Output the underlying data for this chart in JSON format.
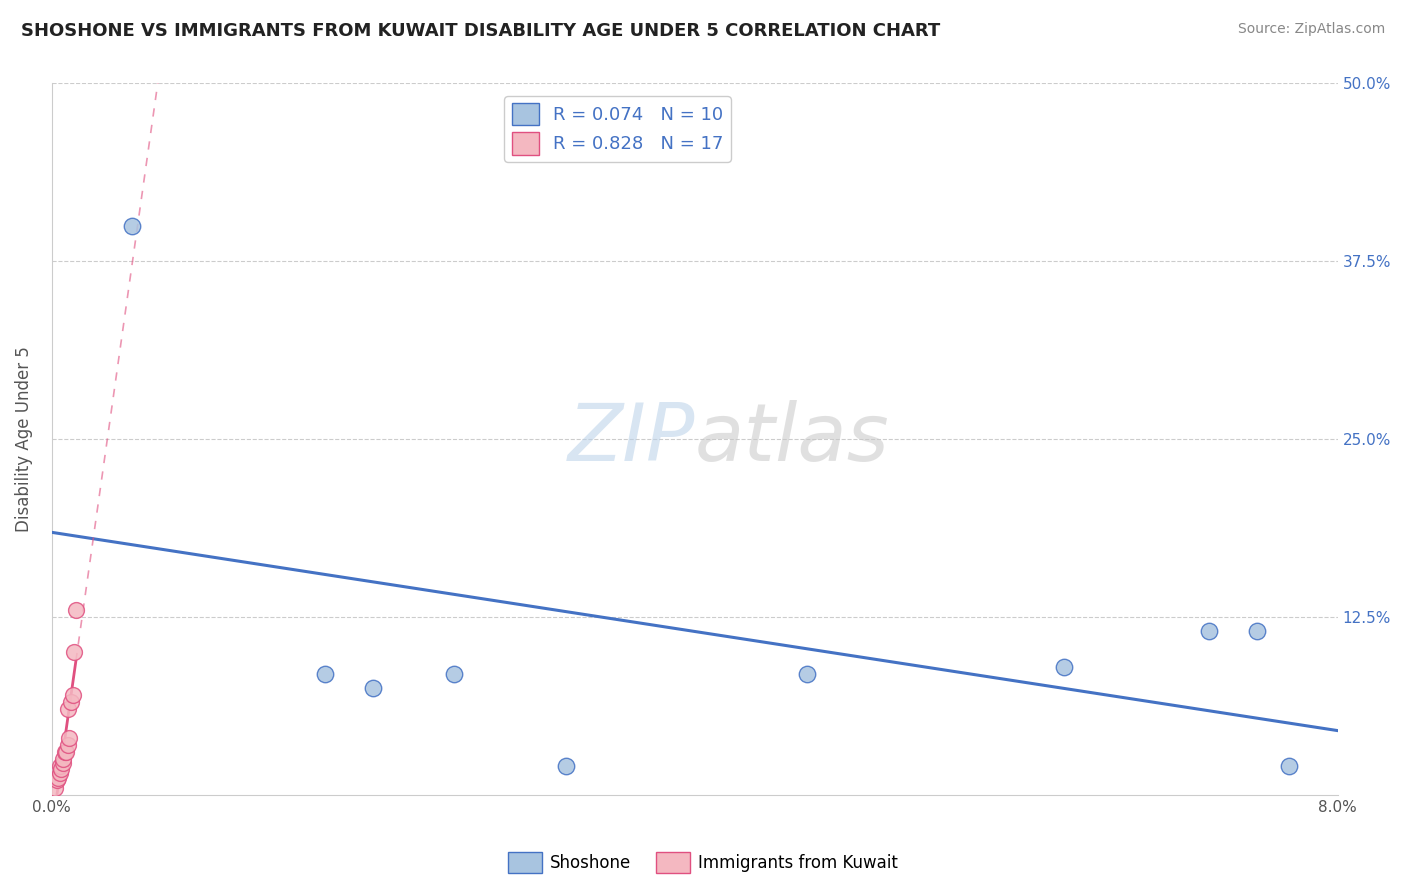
{
  "title": "SHOSHONE VS IMMIGRANTS FROM KUWAIT DISABILITY AGE UNDER 5 CORRELATION CHART",
  "source": "Source: ZipAtlas.com",
  "ylabel": "Disability Age Under 5",
  "xlim": [
    0.0,
    0.08
  ],
  "ylim": [
    0.0,
    0.5
  ],
  "xtick_positions": [
    0.0,
    0.01,
    0.02,
    0.03,
    0.04,
    0.05,
    0.06,
    0.07,
    0.08
  ],
  "xtick_labels": [
    "0.0%",
    "",
    "",
    "",
    "",
    "",
    "",
    "",
    "8.0%"
  ],
  "ytick_positions": [
    0.125,
    0.25,
    0.375,
    0.5
  ],
  "ytick_labels": [
    "12.5%",
    "25.0%",
    "37.5%",
    "50.0%"
  ],
  "shoshone_points": [
    [
      0.005,
      0.4
    ],
    [
      0.017,
      0.085
    ],
    [
      0.02,
      0.075
    ],
    [
      0.025,
      0.085
    ],
    [
      0.032,
      0.02
    ],
    [
      0.047,
      0.085
    ],
    [
      0.063,
      0.09
    ],
    [
      0.072,
      0.115
    ],
    [
      0.075,
      0.115
    ],
    [
      0.077,
      0.02
    ]
  ],
  "kuwait_points": [
    [
      0.0002,
      0.005
    ],
    [
      0.0003,
      0.01
    ],
    [
      0.0004,
      0.012
    ],
    [
      0.0005,
      0.015
    ],
    [
      0.0005,
      0.02
    ],
    [
      0.0006,
      0.018
    ],
    [
      0.0007,
      0.022
    ],
    [
      0.0007,
      0.025
    ],
    [
      0.0008,
      0.03
    ],
    [
      0.0009,
      0.03
    ],
    [
      0.001,
      0.035
    ],
    [
      0.001,
      0.06
    ],
    [
      0.0011,
      0.04
    ],
    [
      0.0012,
      0.065
    ],
    [
      0.0013,
      0.07
    ],
    [
      0.0014,
      0.1
    ],
    [
      0.0015,
      0.13
    ]
  ],
  "shoshone_color": "#a8c4e0",
  "shoshone_edge_color": "#4472c4",
  "shoshone_line_color": "#4472c4",
  "kuwait_color": "#f4b8c1",
  "kuwait_edge_color": "#e05080",
  "kuwait_line_color": "#e05080",
  "R_shoshone": 0.074,
  "N_shoshone": 10,
  "R_kuwait": 0.828,
  "N_kuwait": 17,
  "grid_color": "#cccccc",
  "background_color": "#ffffff"
}
